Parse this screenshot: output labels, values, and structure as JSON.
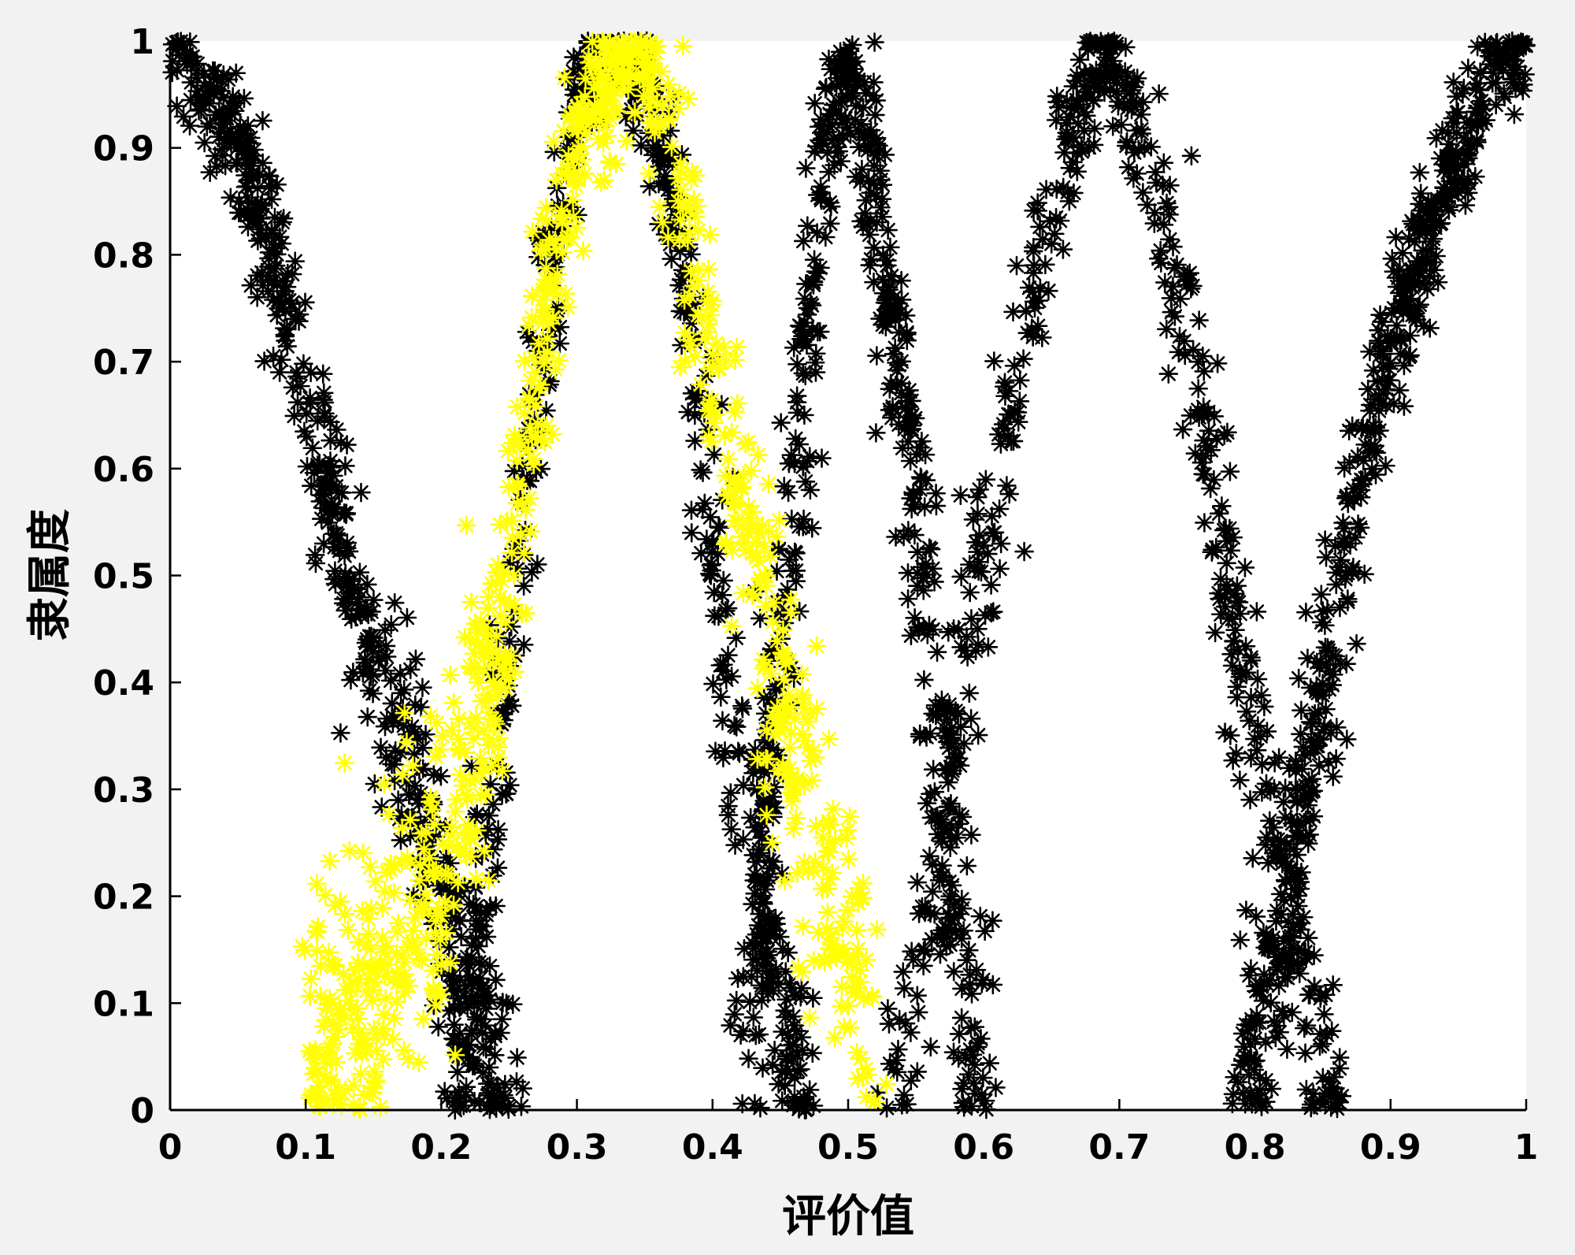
{
  "chart_data": {
    "type": "scatter",
    "title": "",
    "xlabel": "评价值",
    "ylabel": "隶属度",
    "xlim": [
      0,
      1
    ],
    "ylim": [
      0,
      1
    ],
    "xticks": [
      "0",
      "0.1",
      "0.2",
      "0.3",
      "0.4",
      "0.5",
      "0.6",
      "0.7",
      "0.8",
      "0.9",
      "1"
    ],
    "yticks": [
      "0",
      "0.1",
      "0.2",
      "0.3",
      "0.4",
      "0.5",
      "0.6",
      "0.7",
      "0.8",
      "0.9",
      "1"
    ],
    "grid": false,
    "legend": "none",
    "marker": "asterisk",
    "series": [
      {
        "color": "#000000",
        "curves": [
          {
            "shape": "descending",
            "points": [
              [
                0.0,
                1.0
              ],
              [
                0.05,
                0.91
              ],
              [
                0.08,
                0.78
              ],
              [
                0.1,
                0.68
              ],
              [
                0.12,
                0.56
              ],
              [
                0.15,
                0.42
              ],
              [
                0.18,
                0.3
              ],
              [
                0.2,
                0.2
              ],
              [
                0.23,
                0.08
              ],
              [
                0.25,
                0.0
              ]
            ]
          },
          {
            "shape": "peak",
            "points": [
              [
                0.21,
                0.0
              ],
              [
                0.24,
                0.3
              ],
              [
                0.26,
                0.52
              ],
              [
                0.28,
                0.78
              ],
              [
                0.3,
                0.96
              ],
              [
                0.32,
                1.0
              ],
              [
                0.35,
                0.96
              ],
              [
                0.38,
                0.78
              ],
              [
                0.4,
                0.55
              ],
              [
                0.42,
                0.32
              ],
              [
                0.45,
                0.1
              ],
              [
                0.47,
                0.0
              ]
            ]
          },
          {
            "shape": "peak",
            "points": [
              [
                0.42,
                0.0
              ],
              [
                0.44,
                0.28
              ],
              [
                0.46,
                0.56
              ],
              [
                0.48,
                0.86
              ],
              [
                0.5,
                1.0
              ],
              [
                0.52,
                0.86
              ],
              [
                0.55,
                0.56
              ],
              [
                0.57,
                0.28
              ],
              [
                0.6,
                0.0
              ]
            ]
          },
          {
            "shape": "peak",
            "points": [
              [
                0.53,
                0.0
              ],
              [
                0.57,
                0.25
              ],
              [
                0.6,
                0.5
              ],
              [
                0.65,
                0.86
              ],
              [
                0.69,
                1.0
              ],
              [
                0.73,
                0.86
              ],
              [
                0.78,
                0.5
              ],
              [
                0.82,
                0.2
              ],
              [
                0.86,
                0.0
              ]
            ]
          },
          {
            "shape": "ascending",
            "points": [
              [
                0.79,
                0.0
              ],
              [
                0.83,
                0.25
              ],
              [
                0.86,
                0.48
              ],
              [
                0.89,
                0.66
              ],
              [
                0.93,
                0.84
              ],
              [
                0.97,
                0.95
              ],
              [
                1.0,
                1.0
              ]
            ]
          }
        ]
      },
      {
        "color": "#ffff00",
        "curves": [
          {
            "shape": "peak",
            "points": [
              [
                0.1,
                0.03
              ],
              [
                0.15,
                0.12
              ],
              [
                0.2,
                0.22
              ],
              [
                0.24,
                0.42
              ],
              [
                0.27,
                0.68
              ],
              [
                0.3,
                0.9
              ],
              [
                0.34,
                1.0
              ],
              [
                0.37,
                0.9
              ],
              [
                0.4,
                0.7
              ],
              [
                0.44,
                0.45
              ],
              [
                0.48,
                0.22
              ],
              [
                0.52,
                0.05
              ]
            ]
          }
        ]
      }
    ]
  }
}
